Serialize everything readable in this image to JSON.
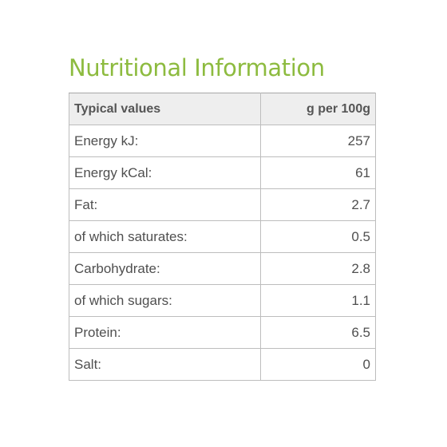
{
  "title": "Nutritional Information",
  "table": {
    "headers": [
      "Typical values",
      "g per 100g"
    ],
    "rows": [
      {
        "label": "Energy kJ:",
        "value": "257"
      },
      {
        "label": "Energy kCal:",
        "value": "61"
      },
      {
        "label": "Fat:",
        "value": "2.7"
      },
      {
        "label": "of which saturates:",
        "value": "0.5"
      },
      {
        "label": "Carbohydrate:",
        "value": "2.8"
      },
      {
        "label": "of which sugars:",
        "value": "1.1"
      },
      {
        "label": "Protein:",
        "value": "6.5"
      },
      {
        "label": "Salt:",
        "value": "0"
      }
    ]
  },
  "colors": {
    "title": "#8dbb3f",
    "text": "#4f4f4f",
    "header_bg": "#eeeeee",
    "border": "#bdbdbd"
  }
}
